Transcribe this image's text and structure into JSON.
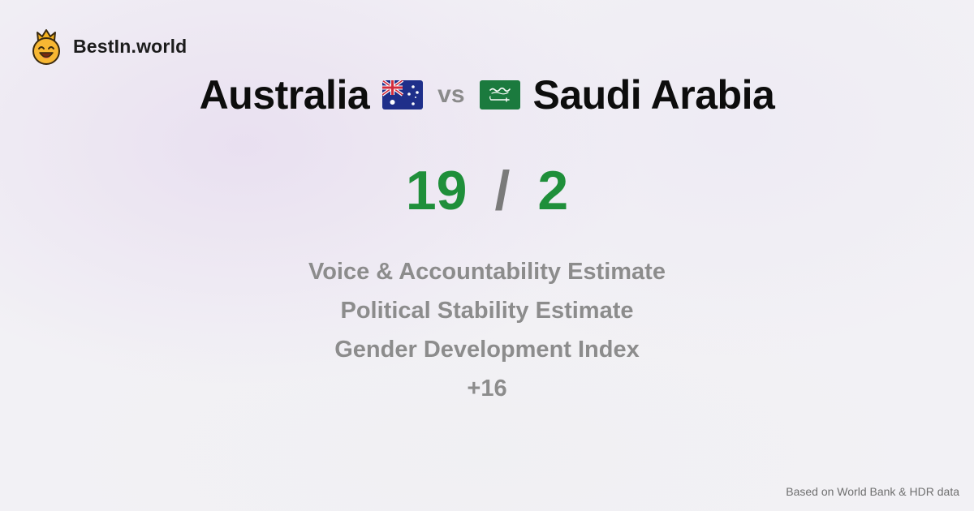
{
  "brand": {
    "name": "BestIn.world",
    "logo_icon": "crown-smiley-icon"
  },
  "headline": {
    "left_country": "Australia",
    "left_flag_icon": "australia-flag-icon",
    "separator": "vs",
    "right_country": "Saudi Arabia",
    "right_flag_icon": "saudi-arabia-flag-icon"
  },
  "score": {
    "left": "19",
    "separator": "/",
    "right": "2"
  },
  "metrics": [
    "Voice & Accountability Estimate",
    "Political Stability Estimate",
    "Gender Development Index",
    "+16"
  ],
  "footer": {
    "note": "Based on World Bank & HDR data"
  },
  "colors": {
    "score_green": "#1f8f3a",
    "muted_text": "#8c8c8c",
    "background": "#f2f1f5"
  }
}
